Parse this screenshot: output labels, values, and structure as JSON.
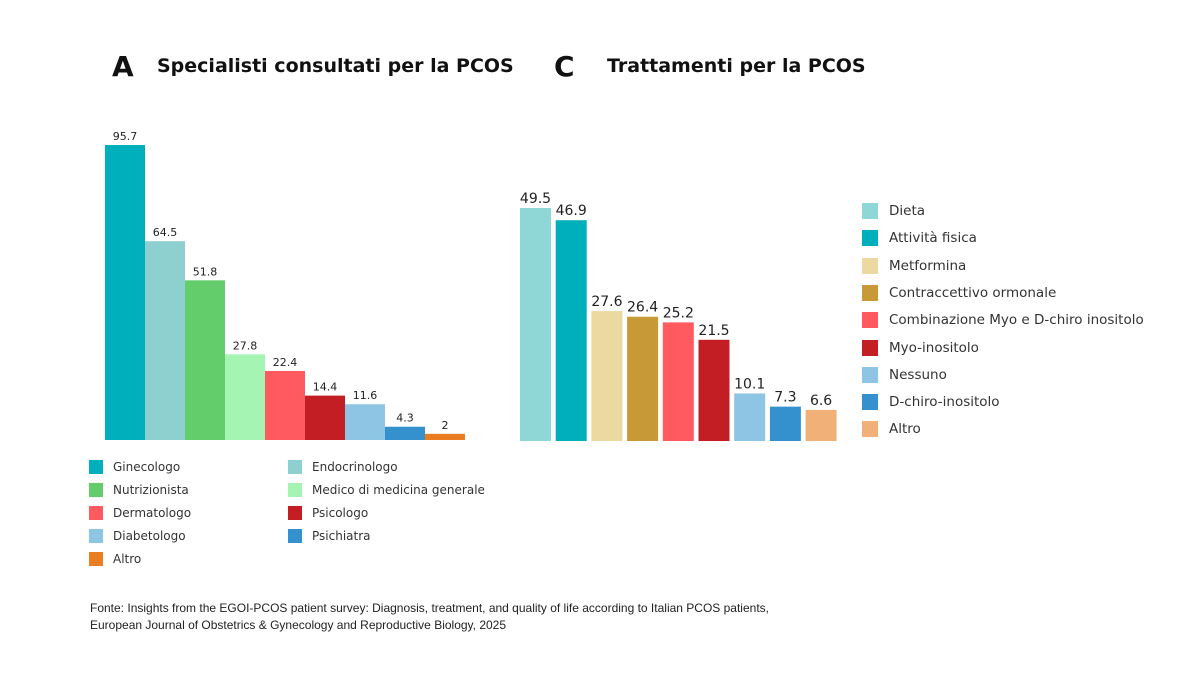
{
  "chart_data": [
    {
      "type": "bar",
      "panel": "A",
      "title": "Specialisti consultati per la PCOS",
      "categories": [
        "Ginecologo",
        "Endocrinologo",
        "Nutrizionista",
        "Medico di medicina generale",
        "Dermatologo",
        "Psicologo",
        "Diabetologo",
        "Psichiatra",
        "Altro"
      ],
      "values": [
        95.7,
        64.5,
        51.8,
        27.8,
        22.4,
        14.4,
        11.6,
        4.3,
        2
      ],
      "value_labels": [
        "95.7",
        "64.5",
        "51.8",
        "27.8",
        "22.4",
        "14.4",
        "11.6",
        "4.3",
        "2"
      ],
      "colors": [
        "#00afbc",
        "#8ecfcf",
        "#63cc6b",
        "#a6f4b4",
        "#ff5a60",
        "#c41e25",
        "#8fc5e4",
        "#3591cd",
        "#ea7d20"
      ],
      "legend_order": [
        "Ginecologo",
        "Endocrinologo",
        "Nutrizionista",
        "Medico di medicina generale",
        "Dermatologo",
        "Psicologo",
        "Diabetologo",
        "Psichiatra",
        "Altro"
      ],
      "legend_placement": "bottom",
      "xlabel": "",
      "ylabel": "",
      "ylim": [
        0,
        100
      ],
      "grid": false
    },
    {
      "type": "bar",
      "panel": "C",
      "title": "Trattamenti per la PCOS",
      "categories": [
        "Dieta",
        "Attività fisica",
        "Metformina",
        "Contraccettivo ormonale",
        "Combinazione Myo e D-chiro inositolo",
        "Myo-inositolo",
        "Nessuno",
        "D-chiro-inositolo",
        "Altro"
      ],
      "values": [
        49.5,
        46.9,
        27.6,
        26.4,
        25.2,
        21.5,
        10.1,
        7.3,
        6.6
      ],
      "value_labels": [
        "49.5",
        "46.9",
        "27.6",
        "26.4",
        "25.2",
        "21.5",
        "10.1",
        "7.3",
        "6.6"
      ],
      "colors": [
        "#8fd6d6",
        "#00afbc",
        "#ecd9a1",
        "#c79a37",
        "#ff5a60",
        "#c41e25",
        "#8fc5e4",
        "#3591cd",
        "#f1b077"
      ],
      "legend_placement": "right",
      "xlabel": "",
      "ylabel": "",
      "ylim": [
        0,
        100
      ],
      "grid": false
    }
  ],
  "source": {
    "line1": "Fonte: Insights from the EGOI-PCOS patient survey: Diagnosis, treatment, and quality of life according to Italian PCOS patients,",
    "line2": "European Journal of Obstetrics & Gynecology and Reproductive Biology, 2025"
  }
}
